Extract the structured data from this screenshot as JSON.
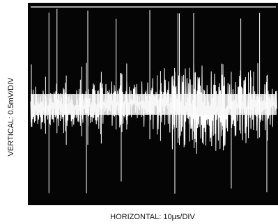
{
  "axes": {
    "vertical": "VERTICAL: 0.5mV/DIV",
    "horizontal": "HORIZONTAL: 10µs/DIV"
  }
}
